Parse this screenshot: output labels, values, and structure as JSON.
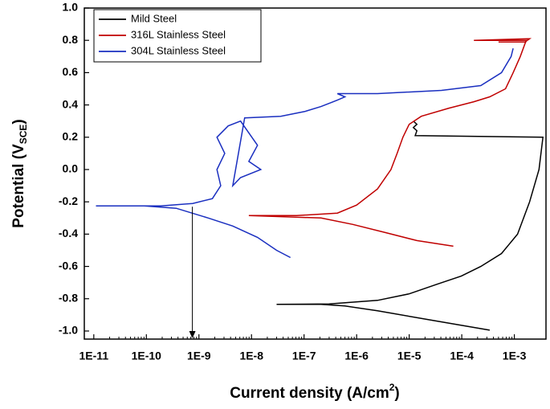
{
  "chart_data": {
    "type": "line",
    "x_label": "Current density (A/cm",
    "x_label_sup": "2",
    "x_label_end": ")",
    "y_label": "Potential (V",
    "y_label_sub": "SCE",
    "y_label_end": ")",
    "xscale": "log",
    "xlim": [
      6.6e-12,
      0.004
    ],
    "ylim": [
      -1.05,
      1.0
    ],
    "xticks": [
      {
        "value": 1e-11,
        "label": "1E-11"
      },
      {
        "value": 1e-10,
        "label": "1E-10"
      },
      {
        "value": 1e-09,
        "label": "1E-9"
      },
      {
        "value": 1e-08,
        "label": "1E-8"
      },
      {
        "value": 1e-07,
        "label": "1E-7"
      },
      {
        "value": 1e-06,
        "label": "1E-6"
      },
      {
        "value": 1e-05,
        "label": "1E-5"
      },
      {
        "value": 0.0001,
        "label": "1E-4"
      },
      {
        "value": 0.001,
        "label": "1E-3"
      }
    ],
    "yticks": [
      {
        "value": 1.0,
        "label": "1.0"
      },
      0.8,
      0.6,
      0.4,
      0.2,
      {
        "value": 0.0,
        "label": "0.0"
      },
      -0.2,
      -0.4,
      -0.6,
      -0.8,
      {
        "value": -1.0,
        "label": "-1.0"
      }
    ],
    "legend": "top-left",
    "arrow_x": 7.5e-10,
    "series": [
      {
        "name": "Mild Steel",
        "color": "#000000",
        "x": [
          0.00034,
          2.9e-05,
          2.5e-06,
          6e-07,
          2.1e-07,
          3e-08,
          3e-07,
          2.5e-06,
          1e-05,
          3.4e-05,
          9.8e-05,
          0.00023,
          0.00057,
          0.00115,
          0.00195,
          0.00295,
          0.0035,
          1.3e-05,
          1.4e-05,
          1.2e-05,
          1.4e-05,
          1.2e-05
        ],
        "values": [
          -0.995,
          -0.935,
          -0.875,
          -0.845,
          -0.835,
          -0.835,
          -0.832,
          -0.81,
          -0.77,
          -0.71,
          -0.66,
          -0.6,
          -0.52,
          -0.4,
          -0.2,
          0.0,
          0.2,
          0.21,
          0.24,
          0.26,
          0.28,
          0.3
        ]
      },
      {
        "name": "316L Stainless Steel",
        "color": "#c00000",
        "x": [
          6.9e-05,
          1.4e-05,
          3.5e-06,
          8.5e-07,
          2.1e-07,
          8.9e-09,
          7.2e-08,
          4.3e-07,
          1e-06,
          2.5e-06,
          4.5e-06,
          5.9e-06,
          7.6e-06,
          1e-05,
          1.7e-05,
          5.7e-05,
          0.00017,
          0.00034,
          0.00068,
          0.00095,
          0.0013,
          0.0016,
          0.0017,
          0.00017,
          0.00195,
          0.0016,
          0.0005
        ],
        "values": [
          -0.475,
          -0.44,
          -0.39,
          -0.34,
          -0.3,
          -0.285,
          -0.285,
          -0.27,
          -0.22,
          -0.12,
          0.0,
          0.1,
          0.2,
          0.28,
          0.33,
          0.38,
          0.42,
          0.45,
          0.5,
          0.6,
          0.7,
          0.78,
          0.8,
          0.8,
          0.81,
          0.79,
          0.79
        ]
      },
      {
        "name": "304L Stainless Steel",
        "color": "#1a2fc0",
        "x": [
          5.5e-08,
          3e-08,
          1.3e-08,
          4.4e-09,
          1.5e-09,
          3.7e-10,
          9.1e-11,
          1.1e-11,
          1.9e-10,
          7.6e-10,
          1.8e-09,
          2.6e-09,
          2.2e-09,
          3.1e-09,
          2.2e-09,
          3.6e-09,
          6.2e-09,
          1.3e-08,
          8.9e-09,
          1.5e-08,
          6.2e-09,
          4.4e-09,
          7.4e-09,
          3.6e-08,
          1.05e-07,
          2.1e-07,
          4.3e-07,
          6e-07,
          4.3e-07,
          2.5e-06,
          4.1e-05,
          0.00023,
          0.00057,
          0.00087,
          0.00095
        ],
        "values": [
          -0.545,
          -0.5,
          -0.42,
          -0.35,
          -0.3,
          -0.24,
          -0.225,
          -0.225,
          -0.225,
          -0.21,
          -0.18,
          -0.1,
          0.0,
          0.1,
          0.2,
          0.27,
          0.3,
          0.15,
          0.05,
          0.0,
          -0.05,
          -0.1,
          0.32,
          0.33,
          0.36,
          0.39,
          0.43,
          0.45,
          0.47,
          0.47,
          0.49,
          0.52,
          0.6,
          0.7,
          0.75
        ]
      }
    ]
  }
}
